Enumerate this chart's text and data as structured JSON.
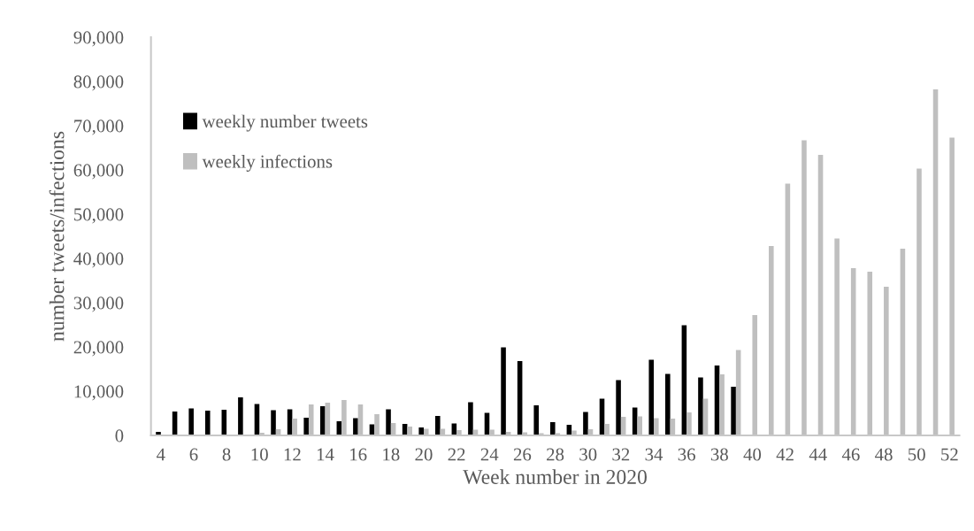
{
  "chart_data": {
    "type": "bar",
    "xlabel": "Week number in 2020",
    "ylabel": "number tweets/infections",
    "categories": [
      "4",
      null,
      "6",
      null,
      "8",
      null,
      "10",
      null,
      "12",
      null,
      "14",
      null,
      "16",
      null,
      "18",
      null,
      "20",
      null,
      "22",
      null,
      "24",
      null,
      "26",
      null,
      "28",
      null,
      "30",
      null,
      "32",
      null,
      "34",
      null,
      "36",
      null,
      "38",
      null,
      "40",
      null,
      "42",
      null,
      "44",
      null,
      "46",
      null,
      "48",
      null,
      "50",
      null,
      "52"
    ],
    "series": [
      {
        "name": "weekly number tweets",
        "color": "#000000",
        "values": [
          800,
          5400,
          6100,
          5600,
          5800,
          8600,
          7100,
          5700,
          5900,
          4000,
          6600,
          3200,
          3900,
          2500,
          5900,
          2600,
          1800,
          4400,
          2700,
          7500,
          5100,
          19900,
          16800,
          6800,
          3000,
          2400,
          5300,
          8300,
          12500,
          6300,
          17100,
          13900,
          24900,
          13100,
          15800,
          11000,
          null,
          null,
          null,
          null,
          null,
          null,
          null,
          null,
          null,
          null,
          null,
          null,
          null
        ]
      },
      {
        "name": "weekly infections",
        "color": "#bfbfbf",
        "values": [
          0,
          0,
          0,
          0,
          0,
          200,
          600,
          1400,
          3800,
          7000,
          7400,
          8000,
          7000,
          4800,
          2800,
          2000,
          1500,
          1500,
          1200,
          1300,
          1300,
          800,
          700,
          500,
          500,
          1100,
          1400,
          2600,
          4200,
          4300,
          3900,
          3800,
          5200,
          8300,
          13800,
          19300,
          27200,
          42800,
          56900,
          66700,
          63400,
          44500,
          37800,
          37000,
          33600,
          42200,
          60300,
          78200,
          67300
        ]
      }
    ],
    "ylim": [
      0,
      90000
    ],
    "yticks": [
      {
        "value": 0,
        "label": "0"
      },
      {
        "value": 10000,
        "label": "10,000"
      },
      {
        "value": 20000,
        "label": "20,000"
      },
      {
        "value": 30000,
        "label": "30,000"
      },
      {
        "value": 40000,
        "label": "40,000"
      },
      {
        "value": 50000,
        "label": "50,000"
      },
      {
        "value": 60000,
        "label": "60,000"
      },
      {
        "value": 70000,
        "label": "70,000"
      },
      {
        "value": 80000,
        "label": "80,000"
      },
      {
        "value": 90000,
        "label": "90,000"
      }
    ],
    "legend": "top left",
    "grid": false
  }
}
